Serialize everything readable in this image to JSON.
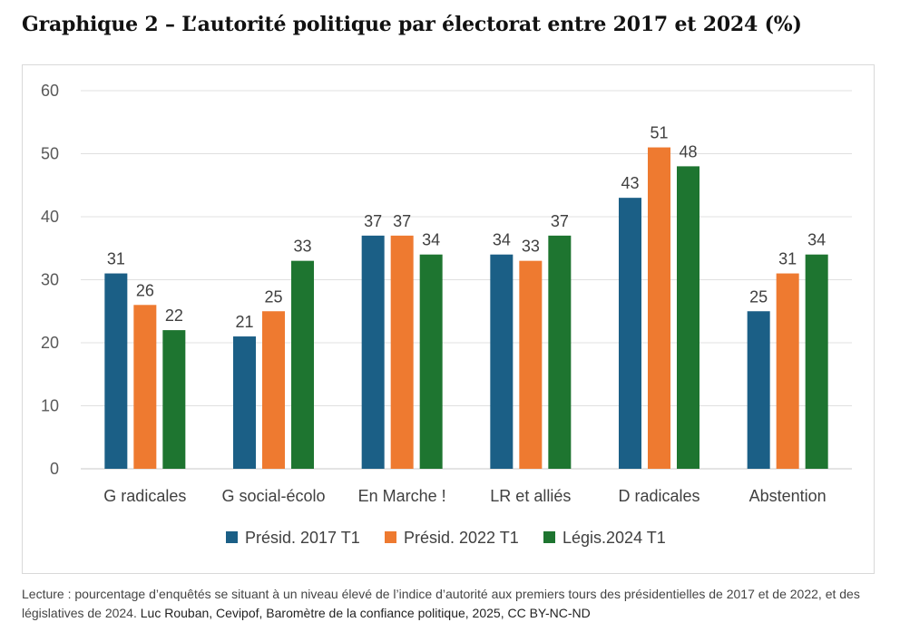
{
  "title": "Graphique 2 – L’autorité politique par électorat entre 2017 et 2024 (%)",
  "caption": {
    "lecture": "Lecture : pourcentage d’enquêtés se situant à un niveau élevé de l’indice d’autorité aux premiers tours des présidentielles de 2017 et de 2022, et des législatives de 2024.",
    "credit": "Luc Rouban, Cevipof, Baromètre de la confiance politique, 2025, CC BY-NC-ND"
  },
  "chart_data": {
    "type": "bar",
    "categories": [
      "G radicales",
      "G social-écolo",
      "En Marche !",
      "LR et alliés",
      "D radicales",
      "Abstention"
    ],
    "series": [
      {
        "name": "Présid. 2017 T1",
        "values": [
          31,
          21,
          37,
          34,
          43,
          25
        ],
        "color": "#1b5f86"
      },
      {
        "name": "Présid. 2022 T1",
        "values": [
          26,
          25,
          37,
          33,
          51,
          31
        ],
        "color": "#ee7a30"
      },
      {
        "name": "Légis.2024 T1",
        "values": [
          22,
          33,
          34,
          37,
          48,
          34
        ],
        "color": "#1e7530"
      }
    ],
    "ylim": [
      0,
      60
    ],
    "yticks": [
      "0",
      "10",
      "20",
      "30",
      "40",
      "50",
      "60"
    ],
    "data_labels": true,
    "grid": true,
    "legend": "bottom"
  }
}
